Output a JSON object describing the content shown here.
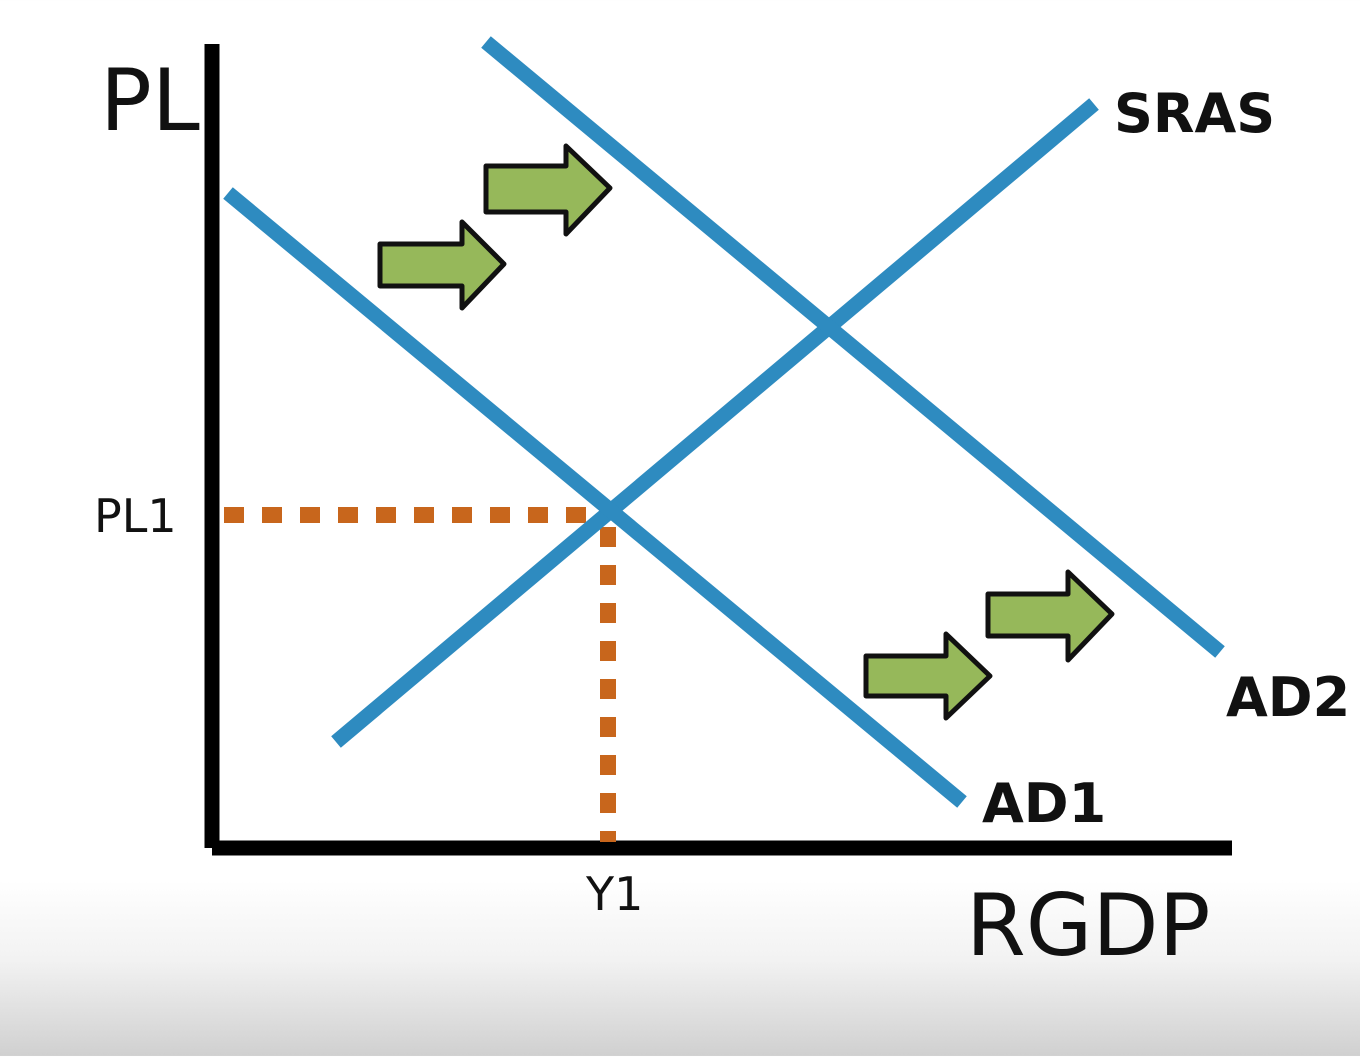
{
  "diagram": {
    "y_axis_label": "PL",
    "x_axis_label": "RGDP",
    "price_level_label": "PL1",
    "output_label": "Y1",
    "curves": {
      "sras": {
        "label": "SRAS"
      },
      "ad1": {
        "label": "AD1"
      },
      "ad2": {
        "label": "AD2"
      }
    },
    "colors": {
      "curve": "#2e8bc0",
      "guide": "#c8661c",
      "arrow_fill": "#96b85a",
      "arrow_stroke": "#111111",
      "axis": "#000000"
    },
    "shift_arrows": {
      "count": 4,
      "direction": "right",
      "icon": "right-arrow-icon"
    }
  }
}
